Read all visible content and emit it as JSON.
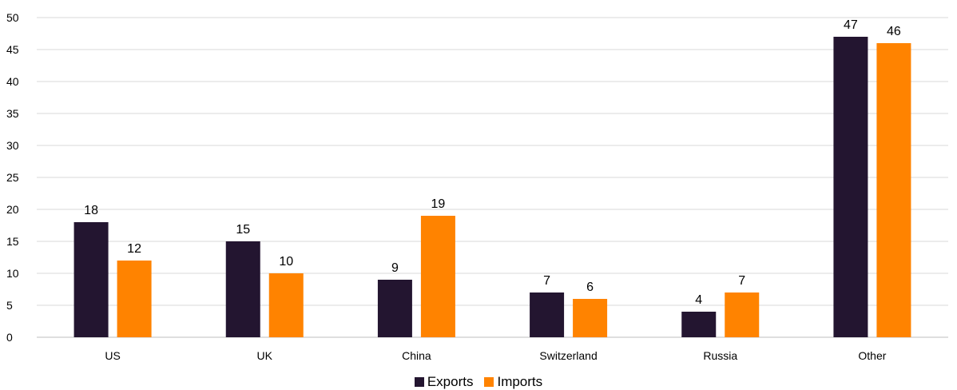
{
  "chart_data": {
    "type": "bar",
    "categories": [
      "US",
      "UK",
      "China",
      "Switzerland",
      "Russia",
      "Other"
    ],
    "series": [
      {
        "name": "Exports",
        "color": "#231530",
        "values": [
          18,
          15,
          9,
          7,
          4,
          47
        ]
      },
      {
        "name": "Imports",
        "color": "#ff8300",
        "values": [
          12,
          10,
          19,
          6,
          7,
          46
        ]
      }
    ],
    "ylim": [
      0,
      50
    ],
    "yticks": [
      0,
      5,
      10,
      15,
      20,
      25,
      30,
      35,
      40,
      45,
      50
    ],
    "grid": true,
    "legend_position": "bottom",
    "data_labels": true
  }
}
